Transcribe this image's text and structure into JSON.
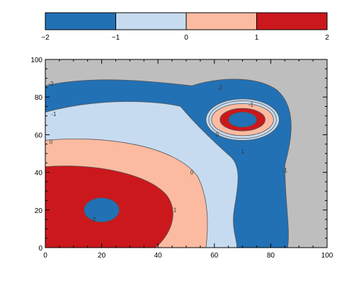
{
  "chart_data": {
    "type": "contour",
    "title": "",
    "xlabel": "",
    "ylabel": "",
    "xlim": [
      0,
      100
    ],
    "ylim": [
      0,
      100
    ],
    "x_ticks": [
      0,
      20,
      40,
      60,
      80,
      100
    ],
    "y_ticks": [
      0,
      20,
      40,
      60,
      80,
      100
    ],
    "background_color": "#bebebe",
    "levels": [
      -2,
      -1,
      0,
      1,
      2
    ],
    "colorbar": {
      "orientation": "horizontal",
      "placement": "top",
      "ticks": [
        -2,
        -1,
        0,
        1,
        2
      ],
      "tick_labels": [
        "−2",
        "−1",
        "0",
        "1",
        "2"
      ],
      "bands": [
        {
          "from": -2,
          "to": -1,
          "color": "#2271b5"
        },
        {
          "from": -1,
          "to": 0,
          "color": "#c6dbef"
        },
        {
          "from": 0,
          "to": 1,
          "color": "#fcbba1"
        },
        {
          "from": 1,
          "to": 2,
          "color": "#cb181d"
        }
      ]
    },
    "features": [
      {
        "name": "large red peak",
        "center": [
          20,
          20
        ],
        "value_range": [
          1,
          2
        ],
        "inner_dip_center": [
          20,
          20
        ]
      },
      {
        "name": "small red ring",
        "center": [
          70,
          68
        ],
        "value_range": [
          1,
          2
        ],
        "inner_dip_center": [
          70,
          68
        ]
      },
      {
        "name": "blue outer band",
        "value_range": [
          -2,
          -1
        ]
      }
    ],
    "contour_labels": [
      {
        "text": "-2",
        "x": 2,
        "y": 86
      },
      {
        "text": "-1",
        "x": 3,
        "y": 70
      },
      {
        "text": "0",
        "x": 2,
        "y": 55
      },
      {
        "text": "0",
        "x": 52,
        "y": 39
      },
      {
        "text": "1",
        "x": 46,
        "y": 19
      },
      {
        "text": "-2",
        "x": 62,
        "y": 84
      },
      {
        "text": "-1",
        "x": 73,
        "y": 75
      },
      {
        "text": "0",
        "x": 61,
        "y": 59
      },
      {
        "text": "1",
        "x": 70,
        "y": 50
      },
      {
        "text": "-1",
        "x": 85,
        "y": 40
      },
      {
        "text": "-2",
        "x": 17,
        "y": 14
      }
    ]
  }
}
